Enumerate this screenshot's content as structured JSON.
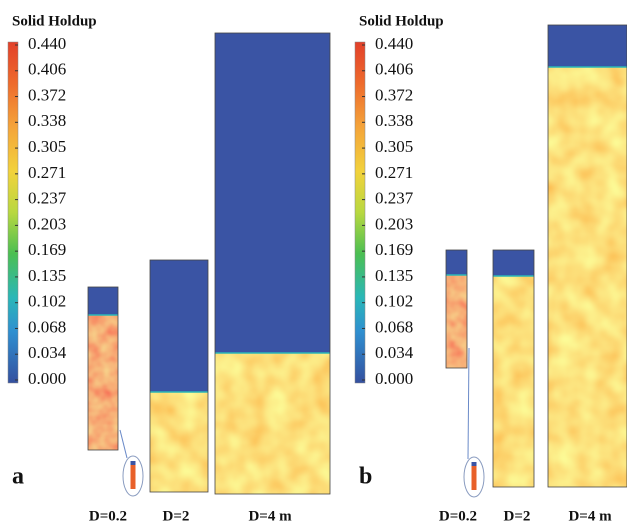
{
  "panels": [
    {
      "title": "Solid Holdup",
      "letter": "a",
      "scale": [
        "0.440",
        "0.406",
        "0.372",
        "0.338",
        "0.305",
        "0.271",
        "0.237",
        "0.203",
        "0.169",
        "0.135",
        "0.102",
        "0.068",
        "0.034",
        "0.000"
      ],
      "columns": [
        "D=0.2",
        "D=2",
        "D=4 m"
      ]
    },
    {
      "title": "Solid Holdup",
      "letter": "b",
      "scale": [
        "0.440",
        "0.406",
        "0.372",
        "0.338",
        "0.305",
        "0.271",
        "0.237",
        "0.203",
        "0.169",
        "0.135",
        "0.102",
        "0.068",
        "0.034",
        "0.000"
      ],
      "columns": [
        "D=0.2",
        "D=2",
        "D=4 m"
      ]
    }
  ]
}
